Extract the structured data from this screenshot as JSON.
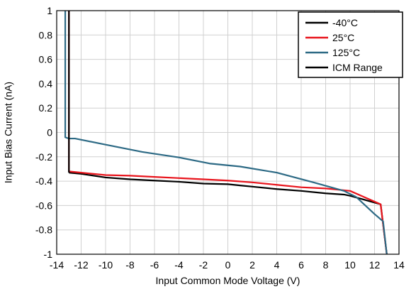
{
  "chart_data": {
    "type": "line",
    "title": "",
    "xlabel": "Input Common Mode Voltage (V)",
    "ylabel": "Input Bias Current (nA)",
    "xlim": [
      -14,
      14
    ],
    "ylim": [
      -1,
      1
    ],
    "xticks": [
      -14,
      -12,
      -10,
      -8,
      -6,
      -4,
      -2,
      0,
      2,
      4,
      6,
      8,
      10,
      12,
      14
    ],
    "yticks": [
      1,
      0.8,
      0.6,
      0.4,
      0.2,
      0,
      -0.2,
      -0.4,
      -0.6,
      -0.8,
      -1
    ],
    "grid": true,
    "legend_position": "top-right",
    "series": [
      {
        "name": "-40°C",
        "color": "#000000",
        "x": [
          -13.0,
          -12.0,
          -10.0,
          -8.0,
          -6.0,
          -4.0,
          -2.0,
          0.0,
          1.0,
          2.0,
          4.0,
          6.0,
          8.0,
          9.5,
          10.0,
          12.5,
          13.0
        ],
        "y": [
          -0.33,
          -0.34,
          -0.37,
          -0.385,
          -0.395,
          -0.405,
          -0.42,
          -0.425,
          -0.435,
          -0.445,
          -0.465,
          -0.48,
          -0.5,
          -0.51,
          -0.52,
          -0.59,
          -1.0
        ]
      },
      {
        "name": "25°C",
        "color": "#e8141c",
        "x": [
          -13.0,
          -13.0,
          -12.0,
          -10.0,
          -8.0,
          -6.0,
          -4.0,
          -2.0,
          0.0,
          2.0,
          4.0,
          6.0,
          8.0,
          9.5,
          10.0,
          12.5,
          13.0
        ],
        "y": [
          1.0,
          -0.32,
          -0.33,
          -0.35,
          -0.355,
          -0.365,
          -0.375,
          -0.385,
          -0.395,
          -0.41,
          -0.43,
          -0.45,
          -0.46,
          -0.475,
          -0.48,
          -0.59,
          -1.0
        ]
      },
      {
        "name": "125°C",
        "color": "#2d6a85",
        "x": [
          -13.3,
          -13.3,
          -13.0,
          -12.5,
          -10.0,
          -7.0,
          -4.0,
          -1.5,
          1.0,
          4.0,
          7.0,
          9.5,
          10.5,
          12.0,
          12.7,
          13.0
        ],
        "y": [
          1.0,
          -0.04,
          -0.05,
          -0.05,
          -0.1,
          -0.16,
          -0.205,
          -0.255,
          -0.28,
          -0.33,
          -0.41,
          -0.48,
          -0.53,
          -0.67,
          -0.73,
          -1.0
        ]
      },
      {
        "name": "ICM Range",
        "color": "#000000",
        "x": [
          -13.0,
          -13.0
        ],
        "y": [
          1.0,
          -0.33
        ]
      }
    ]
  }
}
